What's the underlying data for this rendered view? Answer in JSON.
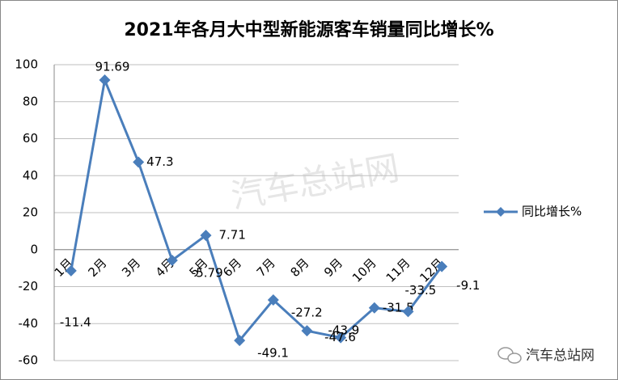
{
  "chart_data": {
    "type": "line",
    "title": "2021年各月大中型新能源客车销量同比增长%",
    "categories": [
      "1月",
      "2月",
      "3月",
      "4月",
      "5月",
      "6月",
      "7月",
      "8月",
      "9月",
      "10月",
      "11月",
      "12月"
    ],
    "series": [
      {
        "name": "同比增长%",
        "color": "#4a7ebb",
        "values": [
          -11.4,
          91.69,
          47.3,
          -5.79,
          7.71,
          -49.1,
          -27.2,
          -43.9,
          -47.6,
          -31.5,
          -33.5,
          -9.1
        ]
      }
    ],
    "ylim": [
      -60,
      100
    ],
    "yticks": [
      -60,
      -40,
      -20,
      0,
      20,
      40,
      60,
      80,
      100
    ],
    "grid": true,
    "legend": "right"
  },
  "watermark": "汽车总站网",
  "logo_text": "汽车总站网"
}
